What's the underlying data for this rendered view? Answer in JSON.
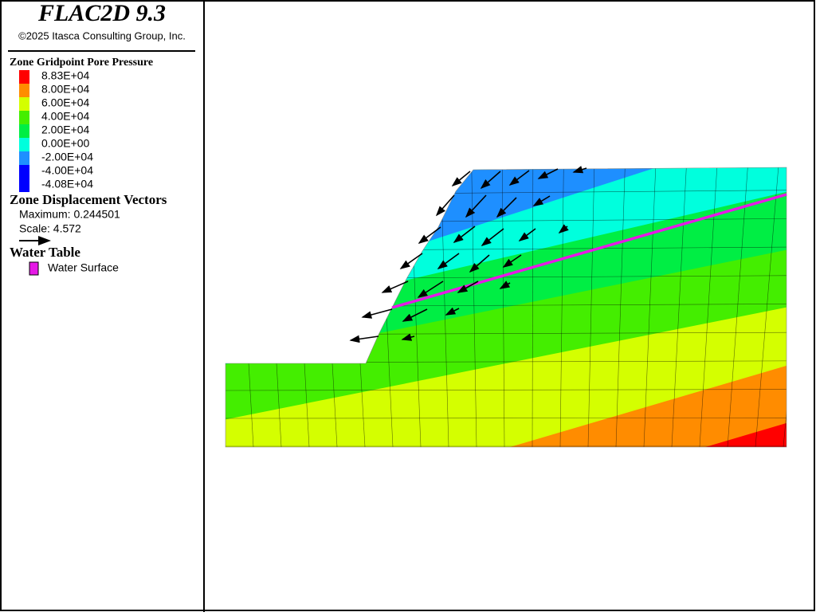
{
  "header": {
    "title": "FLAC2D 9.3",
    "copyright": "©2025 Itasca Consulting Group, Inc."
  },
  "legend": {
    "pore_pressure": {
      "title": "Zone Gridpoint Pore Pressure",
      "items": [
        {
          "label": "8.83E+04",
          "color": "#ff0000"
        },
        {
          "label": "8.00E+04",
          "color": "#ff8c00"
        },
        {
          "label": "6.00E+04",
          "color": "#d4ff00"
        },
        {
          "label": "4.00E+04",
          "color": "#44ee00"
        },
        {
          "label": "2.00E+04",
          "color": "#00ee44"
        },
        {
          "label": "0.00E+00",
          "color": "#00ffdd"
        },
        {
          "label": "-2.00E+04",
          "color": "#1e8fff"
        },
        {
          "label": "-4.00E+04",
          "color": "#0000ff"
        },
        {
          "label": "-4.08E+04",
          "color": "#0000ff"
        }
      ]
    },
    "displacement": {
      "title": "Zone Displacement Vectors",
      "maximum": "Maximum: 0.244501",
      "scale": "Scale: 4.572"
    },
    "water_table": {
      "title": "Water Table",
      "items": [
        {
          "label": "Water Surface",
          "color": "#e619e6"
        }
      ]
    }
  }
}
